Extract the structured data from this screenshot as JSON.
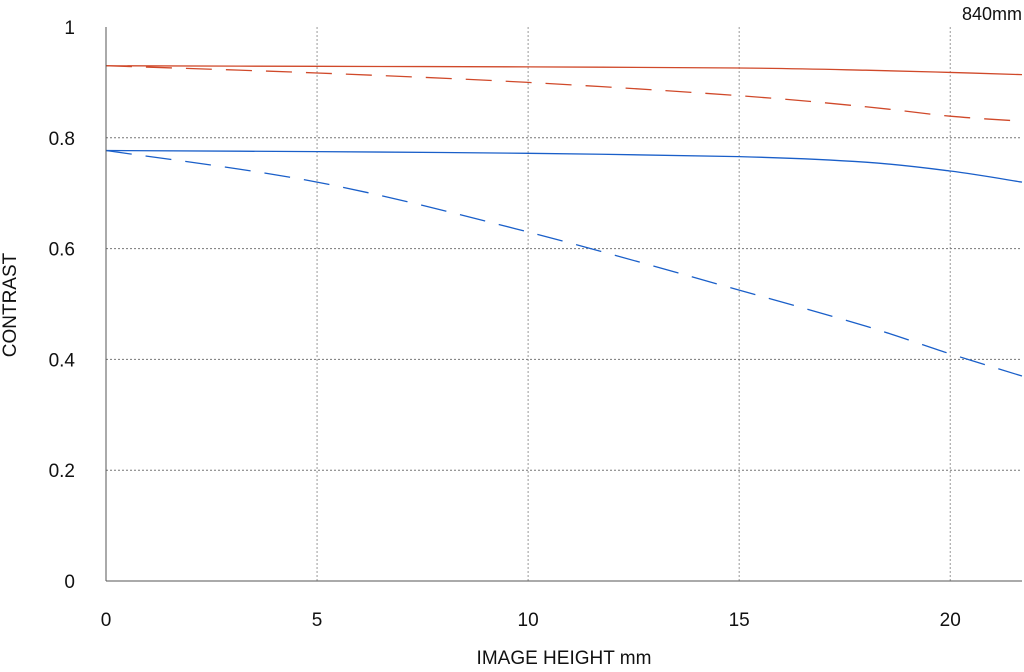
{
  "chart_data": {
    "type": "line",
    "title": "",
    "annotation": "840mm",
    "xlabel": "IMAGE HEIGHT  mm",
    "ylabel": "CONTRAST",
    "xlim": [
      0,
      21.7
    ],
    "ylim": [
      0,
      1
    ],
    "xticks": [
      0,
      5,
      10,
      15,
      20
    ],
    "xtick_labels": [
      "0",
      "5",
      "10",
      "15",
      "20"
    ],
    "yticks": [
      0,
      0.2,
      0.4,
      0.6,
      0.8,
      1
    ],
    "ytick_labels": [
      "0",
      "0.2",
      "0.4",
      "0.6",
      "0.8",
      "1"
    ],
    "grid": true,
    "legend": "none",
    "series": [
      {
        "color": "#d0492a",
        "style": "solid",
        "x": [
          0,
          5,
          10,
          15,
          18,
          20,
          21.7
        ],
        "y": [
          0.93,
          0.929,
          0.928,
          0.926,
          0.922,
          0.918,
          0.914
        ]
      },
      {
        "color": "#d0492a",
        "style": "dashed",
        "x": [
          0,
          5,
          10,
          15,
          18,
          20,
          21.7
        ],
        "y": [
          0.93,
          0.917,
          0.9,
          0.876,
          0.856,
          0.839,
          0.83
        ]
      },
      {
        "color": "#1a5fc9",
        "style": "solid",
        "x": [
          0,
          5,
          10,
          15,
          18,
          20,
          21.7
        ],
        "y": [
          0.777,
          0.775,
          0.772,
          0.766,
          0.756,
          0.74,
          0.72
        ]
      },
      {
        "color": "#1a5fc9",
        "style": "dashed",
        "x": [
          0,
          5,
          10,
          15,
          18,
          20,
          21.7
        ],
        "y": [
          0.777,
          0.72,
          0.63,
          0.525,
          0.46,
          0.41,
          0.37
        ]
      }
    ]
  }
}
